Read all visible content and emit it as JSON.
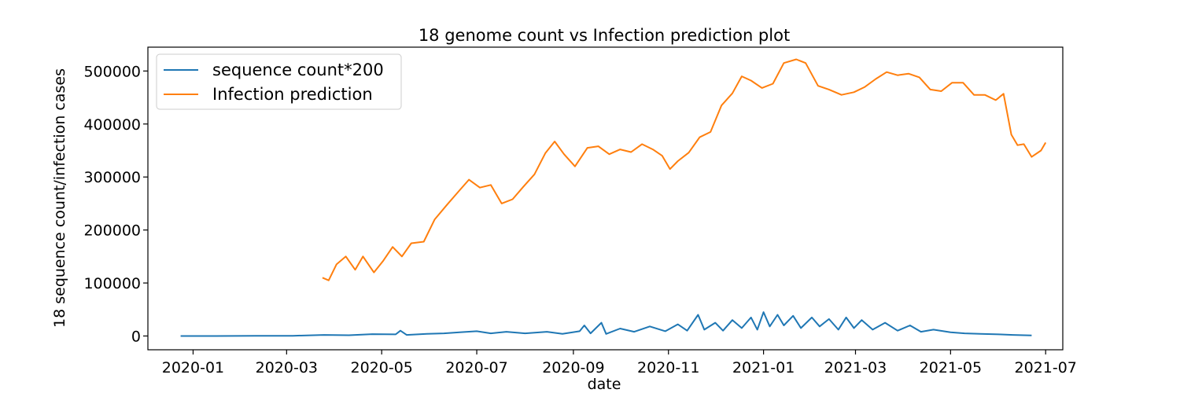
{
  "chart_data": {
    "type": "line",
    "title": "18 genome count vs Infection prediction plot",
    "xlabel": "date",
    "ylabel": "18 sequence count/infection cases",
    "x_axis": {
      "type": "date",
      "range": [
        "2019-12-03",
        "2021-07-12"
      ],
      "ticks": [
        "2020-01-01",
        "2020-03-01",
        "2020-05-01",
        "2020-07-01",
        "2020-09-01",
        "2020-11-01",
        "2021-01-01",
        "2021-03-01",
        "2021-05-01",
        "2021-07-01"
      ],
      "tick_labels": [
        "2020-01",
        "2020-03",
        "2020-05",
        "2020-07",
        "2020-09",
        "2020-11",
        "2021-01",
        "2021-03",
        "2021-05",
        "2021-07"
      ]
    },
    "y_axis": {
      "range": [
        -26000,
        545000
      ],
      "ticks": [
        0,
        100000,
        200000,
        300000,
        400000,
        500000
      ],
      "tick_labels": [
        "0",
        "100000",
        "200000",
        "300000",
        "400000",
        "500000"
      ]
    },
    "grid": false,
    "legend_position": "top-left",
    "series": [
      {
        "name": "sequence count*200",
        "color": "#1f77b4",
        "points": [
          [
            "2019-12-24",
            0
          ],
          [
            "2020-01-15",
            0
          ],
          [
            "2020-02-10",
            200
          ],
          [
            "2020-03-05",
            400
          ],
          [
            "2020-03-25",
            2000
          ],
          [
            "2020-04-10",
            1500
          ],
          [
            "2020-04-25",
            3500
          ],
          [
            "2020-05-10",
            3000
          ],
          [
            "2020-05-13",
            10000
          ],
          [
            "2020-05-17",
            2000
          ],
          [
            "2020-05-30",
            4000
          ],
          [
            "2020-06-10",
            5000
          ],
          [
            "2020-06-20",
            7000
          ],
          [
            "2020-07-01",
            9000
          ],
          [
            "2020-07-10",
            5000
          ],
          [
            "2020-07-20",
            8000
          ],
          [
            "2020-08-01",
            5000
          ],
          [
            "2020-08-15",
            8000
          ],
          [
            "2020-08-25",
            4000
          ],
          [
            "2020-09-05",
            9000
          ],
          [
            "2020-09-08",
            20000
          ],
          [
            "2020-09-12",
            5000
          ],
          [
            "2020-09-19",
            25000
          ],
          [
            "2020-09-22",
            4000
          ],
          [
            "2020-10-01",
            14000
          ],
          [
            "2020-10-10",
            8000
          ],
          [
            "2020-10-20",
            18000
          ],
          [
            "2020-10-30",
            9000
          ],
          [
            "2020-11-07",
            22000
          ],
          [
            "2020-11-13",
            10000
          ],
          [
            "2020-11-20",
            40000
          ],
          [
            "2020-11-24",
            12000
          ],
          [
            "2020-12-01",
            25000
          ],
          [
            "2020-12-06",
            10000
          ],
          [
            "2020-12-12",
            30000
          ],
          [
            "2020-12-18",
            15000
          ],
          [
            "2020-12-24",
            35000
          ],
          [
            "2020-12-28",
            12000
          ],
          [
            "2021-01-01",
            45000
          ],
          [
            "2021-01-05",
            18000
          ],
          [
            "2021-01-10",
            40000
          ],
          [
            "2021-01-14",
            20000
          ],
          [
            "2021-01-20",
            38000
          ],
          [
            "2021-01-25",
            15000
          ],
          [
            "2021-02-01",
            35000
          ],
          [
            "2021-02-06",
            18000
          ],
          [
            "2021-02-12",
            32000
          ],
          [
            "2021-02-18",
            12000
          ],
          [
            "2021-02-23",
            35000
          ],
          [
            "2021-02-28",
            15000
          ],
          [
            "2021-03-05",
            30000
          ],
          [
            "2021-03-12",
            12000
          ],
          [
            "2021-03-20",
            25000
          ],
          [
            "2021-03-28",
            10000
          ],
          [
            "2021-04-05",
            20000
          ],
          [
            "2021-04-12",
            8000
          ],
          [
            "2021-04-20",
            12000
          ],
          [
            "2021-05-01",
            7000
          ],
          [
            "2021-05-10",
            5000
          ],
          [
            "2021-05-20",
            4000
          ],
          [
            "2021-06-01",
            3000
          ],
          [
            "2021-06-10",
            2000
          ],
          [
            "2021-06-22",
            1000
          ]
        ]
      },
      {
        "name": "Infection prediction",
        "color": "#ff7f0e",
        "points": [
          [
            "2020-03-24",
            110000
          ],
          [
            "2020-03-28",
            105000
          ],
          [
            "2020-04-02",
            135000
          ],
          [
            "2020-04-08",
            150000
          ],
          [
            "2020-04-14",
            125000
          ],
          [
            "2020-04-19",
            150000
          ],
          [
            "2020-04-26",
            120000
          ],
          [
            "2020-05-02",
            142000
          ],
          [
            "2020-05-08",
            168000
          ],
          [
            "2020-05-14",
            150000
          ],
          [
            "2020-05-20",
            175000
          ],
          [
            "2020-05-28",
            178000
          ],
          [
            "2020-06-04",
            220000
          ],
          [
            "2020-06-12",
            248000
          ],
          [
            "2020-06-20",
            275000
          ],
          [
            "2020-06-26",
            295000
          ],
          [
            "2020-07-03",
            280000
          ],
          [
            "2020-07-10",
            285000
          ],
          [
            "2020-07-17",
            250000
          ],
          [
            "2020-07-24",
            258000
          ],
          [
            "2020-07-31",
            282000
          ],
          [
            "2020-08-07",
            305000
          ],
          [
            "2020-08-14",
            345000
          ],
          [
            "2020-08-20",
            367000
          ],
          [
            "2020-08-26",
            343000
          ],
          [
            "2020-09-02",
            320000
          ],
          [
            "2020-09-10",
            355000
          ],
          [
            "2020-09-17",
            358000
          ],
          [
            "2020-09-24",
            343000
          ],
          [
            "2020-10-01",
            352000
          ],
          [
            "2020-10-08",
            347000
          ],
          [
            "2020-10-15",
            362000
          ],
          [
            "2020-10-22",
            352000
          ],
          [
            "2020-10-28",
            340000
          ],
          [
            "2020-11-02",
            315000
          ],
          [
            "2020-11-07",
            330000
          ],
          [
            "2020-11-14",
            346000
          ],
          [
            "2020-11-21",
            375000
          ],
          [
            "2020-11-28",
            385000
          ],
          [
            "2020-12-05",
            435000
          ],
          [
            "2020-12-12",
            458000
          ],
          [
            "2020-12-18",
            490000
          ],
          [
            "2020-12-24",
            482000
          ],
          [
            "2020-12-31",
            468000
          ],
          [
            "2021-01-07",
            476000
          ],
          [
            "2021-01-14",
            515000
          ],
          [
            "2021-01-22",
            522000
          ],
          [
            "2021-01-28",
            515000
          ],
          [
            "2021-02-05",
            472000
          ],
          [
            "2021-02-12",
            465000
          ],
          [
            "2021-02-20",
            455000
          ],
          [
            "2021-02-28",
            460000
          ],
          [
            "2021-03-07",
            470000
          ],
          [
            "2021-03-14",
            485000
          ],
          [
            "2021-03-21",
            498000
          ],
          [
            "2021-03-28",
            492000
          ],
          [
            "2021-04-04",
            495000
          ],
          [
            "2021-04-11",
            488000
          ],
          [
            "2021-04-18",
            465000
          ],
          [
            "2021-04-25",
            462000
          ],
          [
            "2021-05-02",
            478000
          ],
          [
            "2021-05-09",
            478000
          ],
          [
            "2021-05-16",
            455000
          ],
          [
            "2021-05-23",
            455000
          ],
          [
            "2021-05-30",
            445000
          ],
          [
            "2021-06-04",
            457000
          ],
          [
            "2021-06-09",
            380000
          ],
          [
            "2021-06-13",
            360000
          ],
          [
            "2021-06-17",
            362000
          ],
          [
            "2021-06-22",
            338000
          ],
          [
            "2021-06-28",
            350000
          ],
          [
            "2021-07-01",
            365000
          ]
        ]
      }
    ]
  }
}
